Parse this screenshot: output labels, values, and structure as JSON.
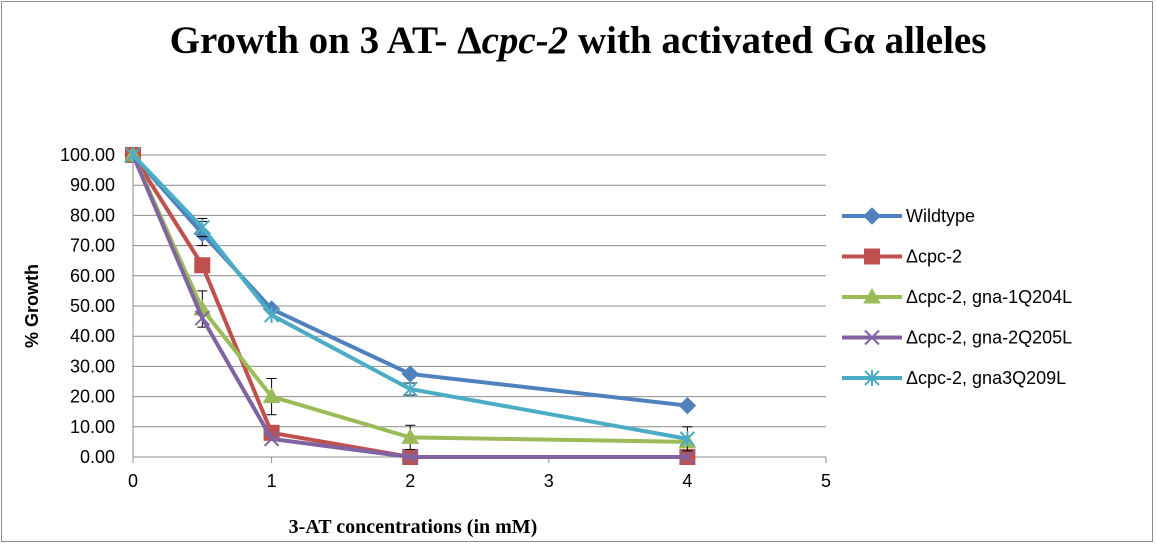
{
  "chart_data": {
    "type": "line",
    "title": {
      "prefix": "Growth on 3 AT-  Δ",
      "italic": "cpc-2",
      "suffix": " with activated Gα alleles"
    },
    "xlabel": "3-AT concentrations (in mM)",
    "ylabel": "% Growth",
    "xlim": [
      0,
      5
    ],
    "ylim": [
      0,
      100
    ],
    "x_ticks": [
      "0",
      "1",
      "2",
      "3",
      "4",
      "5"
    ],
    "y_ticks": [
      "0.00",
      "10.00",
      "20.00",
      "30.00",
      "40.00",
      "50.00",
      "60.00",
      "70.00",
      "80.00",
      "90.00",
      "100.00"
    ],
    "grid": "horizontal",
    "legend_position": "right",
    "series": [
      {
        "name": "Wildtype",
        "color": "#4f81bd",
        "marker": "diamond",
        "x": [
          0,
          0.5,
          1,
          2,
          4
        ],
        "y": [
          100,
          74,
          49,
          27.5,
          17
        ],
        "err": [
          0,
          4,
          0,
          0,
          0
        ]
      },
      {
        "name": "Δcpc-2",
        "color": "#c0504d",
        "marker": "square",
        "x": [
          0,
          0.5,
          1,
          2,
          4
        ],
        "y": [
          100,
          63.5,
          8,
          0,
          0
        ],
        "err": [
          0,
          0,
          2,
          0,
          0
        ]
      },
      {
        "name": "Δcpc-2, gna-1Q204L",
        "color": "#9bbb59",
        "marker": "triangle",
        "x": [
          0,
          0.5,
          1,
          2,
          4
        ],
        "y": [
          100,
          49,
          20,
          6.5,
          5
        ],
        "err": [
          0,
          6,
          6,
          4,
          0
        ]
      },
      {
        "name": " Δcpc-2, gna-2Q205L",
        "color": "#8064a2",
        "marker": "x",
        "x": [
          0,
          0.5,
          1,
          2,
          4
        ],
        "y": [
          100,
          46,
          6,
          0,
          0
        ],
        "err": [
          0,
          0,
          0,
          0,
          0
        ]
      },
      {
        "name": "Δcpc-2, gna3Q209L",
        "color": "#4bacc6",
        "marker": "star",
        "x": [
          0,
          0.5,
          1,
          2,
          4
        ],
        "y": [
          100,
          76,
          47,
          22.5,
          6
        ],
        "err": [
          0,
          3,
          0,
          2,
          4
        ]
      }
    ]
  }
}
